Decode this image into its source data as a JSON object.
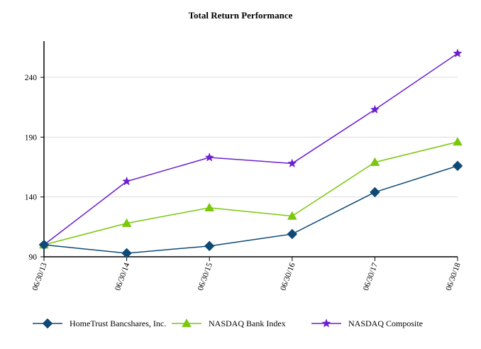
{
  "chart_data": {
    "type": "line",
    "title": "Total Return Performance",
    "xlabel": "",
    "ylabel": "",
    "categories": [
      "06/30/13",
      "06/30/14",
      "06/30/15",
      "06/30/16",
      "06/30/17",
      "06/30/18"
    ],
    "y_ticks": [
      90,
      140,
      190,
      240
    ],
    "ylim": [
      90,
      265
    ],
    "grid": "horizontal",
    "legend_position": "bottom",
    "series": [
      {
        "name": "HomeTrust Bancshares, Inc.",
        "color": "#0e4a75",
        "marker": "diamond",
        "values": [
          100,
          93,
          99,
          109,
          144,
          166
        ]
      },
      {
        "name": "NASDAQ Bank Index",
        "color": "#7ac70c",
        "marker": "triangle",
        "values": [
          100,
          118,
          131,
          124,
          169,
          186
        ]
      },
      {
        "name": "NASDAQ Composite",
        "color": "#6b1fd0",
        "marker": "star",
        "values": [
          100,
          153,
          173,
          168,
          213,
          260
        ]
      }
    ]
  }
}
